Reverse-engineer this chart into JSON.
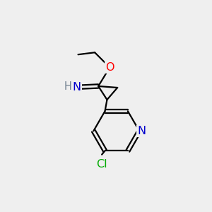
{
  "bg_color": "#efefef",
  "bond_color": "#000000",
  "bond_width": 1.6,
  "atom_colors": {
    "N": "#0000cc",
    "O": "#ff0000",
    "Cl": "#00aa00",
    "H": "#708090",
    "C": "#000000"
  },
  "font_size_atoms": 11.5,
  "font_size_h": 10.5
}
